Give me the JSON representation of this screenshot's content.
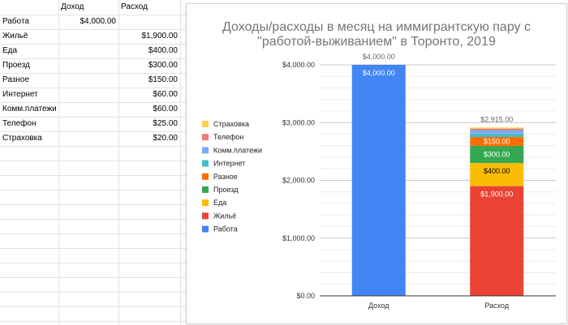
{
  "sheet": {
    "headers": [
      "",
      "Доход",
      "Расход"
    ],
    "rows": [
      [
        "Работа",
        "$4,000.00",
        ""
      ],
      [
        "Жильё",
        "",
        "$1,900.00"
      ],
      [
        "Еда",
        "",
        "$400.00"
      ],
      [
        "Проезд",
        "",
        "$300.00"
      ],
      [
        "Разное",
        "",
        "$150.00"
      ],
      [
        "Интернет",
        "",
        "$60.00"
      ],
      [
        "Комм.платежи",
        "",
        "$60.00"
      ],
      [
        "Телефон",
        "",
        "$25.00"
      ],
      [
        "Страховка",
        "",
        "$20.00"
      ]
    ]
  },
  "chart_data": {
    "type": "bar",
    "stacked": true,
    "title": [
      "Доходы/расходы в месяц на иммигрантскую пару с",
      "\"работой-выживанием\" в Торонто, 2019"
    ],
    "categories": [
      "Доход",
      "Расход"
    ],
    "ylim": [
      0,
      4000
    ],
    "yticks": [
      0,
      1000,
      2000,
      3000,
      4000
    ],
    "ytick_labels": [
      "$0.00",
      "$1,000.00",
      "$2,000.00",
      "$3,000.00",
      "$4,000.00"
    ],
    "minor_gridlines": true,
    "legend_position": "left",
    "totals": [
      "$4,000.00",
      "$2,915.00"
    ],
    "series": [
      {
        "name": "Работа",
        "color": "#4285f4",
        "values": [
          4000,
          0
        ],
        "labels": [
          "$4,000.00",
          ""
        ]
      },
      {
        "name": "Жильё",
        "color": "#ea4335",
        "values": [
          0,
          1900
        ],
        "labels": [
          "",
          "$1,900.00"
        ]
      },
      {
        "name": "Еда",
        "color": "#fbbc04",
        "values": [
          0,
          400
        ],
        "labels": [
          "",
          "$400.00"
        ]
      },
      {
        "name": "Проезд",
        "color": "#34a853",
        "values": [
          0,
          300
        ],
        "labels": [
          "",
          "$300.00"
        ]
      },
      {
        "name": "Разное",
        "color": "#ff6d01",
        "values": [
          0,
          150
        ],
        "labels": [
          "",
          "$150.00"
        ]
      },
      {
        "name": "Интернет",
        "color": "#46bdc6",
        "values": [
          0,
          60
        ],
        "labels": [
          "",
          ""
        ]
      },
      {
        "name": "Комм.платежи",
        "color": "#7baaf7",
        "values": [
          0,
          60
        ],
        "labels": [
          "",
          ""
        ]
      },
      {
        "name": "Телефон",
        "color": "#f07b72",
        "values": [
          0,
          25
        ],
        "labels": [
          "",
          ""
        ]
      },
      {
        "name": "Страховка",
        "color": "#fcd04f",
        "values": [
          0,
          20
        ],
        "labels": [
          "",
          ""
        ]
      }
    ]
  }
}
